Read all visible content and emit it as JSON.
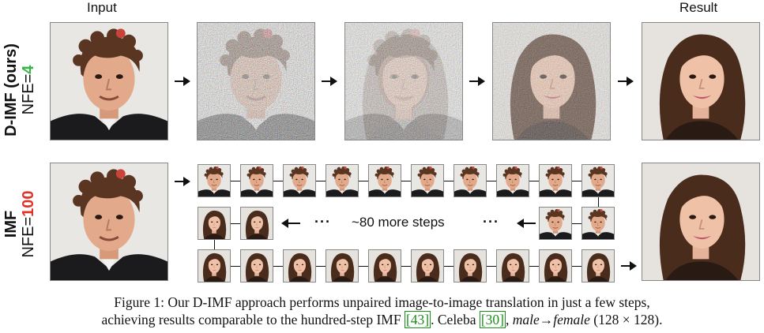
{
  "headers": {
    "input": "Input",
    "result": "Result"
  },
  "rows": {
    "dimf": {
      "title": "D-IMF (ours)",
      "nfe_prefix": "NFE=",
      "nfe_value": "4"
    },
    "imf": {
      "title": "IMF",
      "nfe_prefix": "NFE=",
      "nfe_value": "100"
    }
  },
  "middle_text": {
    "dots": "···",
    "more_steps": "~80 more steps"
  },
  "caption": {
    "line1": "Figure 1: Our D-IMF approach performs unpaired image-to-image translation in just a few steps,",
    "line2_a": "achieving results comparable to the hundred-step IMF ",
    "cite1": "[43]",
    "line2_b": ". Celeba ",
    "cite2": "[30]",
    "line2_c": ", ",
    "line2_italic": "male→female",
    "line2_d": " (128 × 128)."
  },
  "colors": {
    "nfe_fast": "#37b34a",
    "nfe_slow": "#e0312b",
    "cite": "#1a8f1a"
  }
}
